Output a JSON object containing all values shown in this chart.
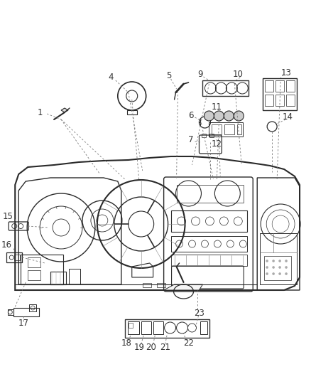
{
  "bg_color": "#ffffff",
  "lc": "#2a2a2a",
  "lc_light": "#555555",
  "fig_width": 4.38,
  "fig_height": 5.33,
  "dpi": 100,
  "xlim": [
    0,
    438
  ],
  "ylim": [
    0,
    533
  ],
  "label_fs": 8.5,
  "label_color": "#333333"
}
